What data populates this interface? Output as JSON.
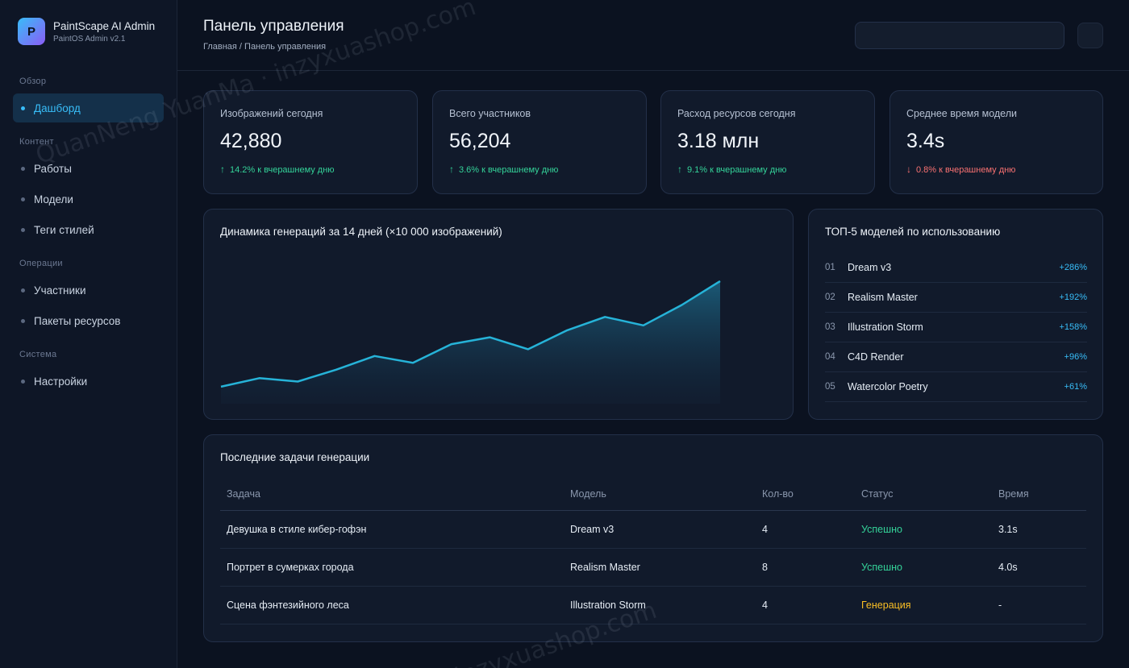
{
  "brand": {
    "logo_letter": "P",
    "name": "PaintScape AI Admin",
    "version": "PaintOS Admin v2.1"
  },
  "sidebar": {
    "sections": [
      {
        "title": "Обзор",
        "items": [
          {
            "label": "Дашборд",
            "active": true
          }
        ]
      },
      {
        "title": "Контент",
        "items": [
          {
            "label": "Работы"
          },
          {
            "label": "Модели"
          },
          {
            "label": "Теги стилей"
          }
        ]
      },
      {
        "title": "Операции",
        "items": [
          {
            "label": "Участники"
          },
          {
            "label": "Пакеты ресурсов"
          }
        ]
      },
      {
        "title": "Система",
        "items": [
          {
            "label": "Настройки"
          }
        ]
      }
    ]
  },
  "header": {
    "title": "Панель управления",
    "breadcrumb": "Главная / Панель управления",
    "search_placeholder": ""
  },
  "stats": [
    {
      "label": "Изображений сегодня",
      "value": "42,880",
      "change": "14.2% к вчерашнему дню",
      "direction": "up",
      "arrow": "↑"
    },
    {
      "label": "Всего участников",
      "value": "56,204",
      "change": "3.6% к вчерашнему дню",
      "direction": "up",
      "arrow": "↑"
    },
    {
      "label": "Расход ресурсов сегодня",
      "value": "3.18 млн",
      "change": "9.1% к вчерашнему дню",
      "direction": "up",
      "arrow": "↑"
    },
    {
      "label": "Среднее время модели",
      "value": "3.4s",
      "change": "0.8% к вчерашнему дню",
      "direction": "down",
      "arrow": "↓"
    }
  ],
  "chart_title": "Динамика генераций за 14 дней (×10 000 изображений)",
  "chart_data": {
    "type": "area",
    "title": "Динамика генераций за 14 дней (×10 000 изображений)",
    "xlabel": "",
    "ylabel": "",
    "x": [
      1,
      2,
      3,
      4,
      5,
      6,
      7,
      8,
      9,
      10,
      11,
      12,
      13,
      14
    ],
    "values": [
      1.0,
      1.5,
      1.3,
      2.0,
      2.8,
      2.4,
      3.5,
      3.9,
      3.2,
      4.3,
      5.1,
      4.6,
      5.8,
      7.2
    ],
    "ylim": [
      0,
      8
    ],
    "grid": false,
    "color": "#26b3d8"
  },
  "top_models": {
    "title": "ТОП-5 моделей по использованию",
    "items": [
      {
        "rank": "01",
        "name": "Dream v3",
        "change": "+286%"
      },
      {
        "rank": "02",
        "name": "Realism Master",
        "change": "+192%"
      },
      {
        "rank": "03",
        "name": "Illustration Storm",
        "change": "+158%"
      },
      {
        "rank": "04",
        "name": "C4D Render",
        "change": "+96%"
      },
      {
        "rank": "05",
        "name": "Watercolor Poetry",
        "change": "+61%"
      }
    ]
  },
  "tasks": {
    "title": "Последние задачи генерации",
    "headers": [
      "Задача",
      "Модель",
      "Кол-во",
      "Статус",
      "Время"
    ],
    "rows": [
      {
        "task": "Девушка в стиле кибер-гофэн",
        "model": "Dream v3",
        "count": "4",
        "status": "Успешно",
        "status_type": "ok",
        "time": "3.1s"
      },
      {
        "task": "Портрет в сумерках города",
        "model": "Realism Master",
        "count": "8",
        "status": "Успешно",
        "status_type": "ok",
        "time": "4.0s"
      },
      {
        "task": "Сцена фэнтезийного леса",
        "model": "Illustration Storm",
        "count": "4",
        "status": "Генерация",
        "status_type": "run",
        "time": "-"
      }
    ]
  },
  "watermarks": [
    "QuanNeng YuanMa · inzyxuashop.com",
    "inzyxuashop.com"
  ],
  "colors": {
    "accent": "#38bdf8",
    "success": "#34d399",
    "danger": "#f87171",
    "warning": "#fbbf24",
    "background": "#0b1220",
    "card": "#111a2b"
  }
}
